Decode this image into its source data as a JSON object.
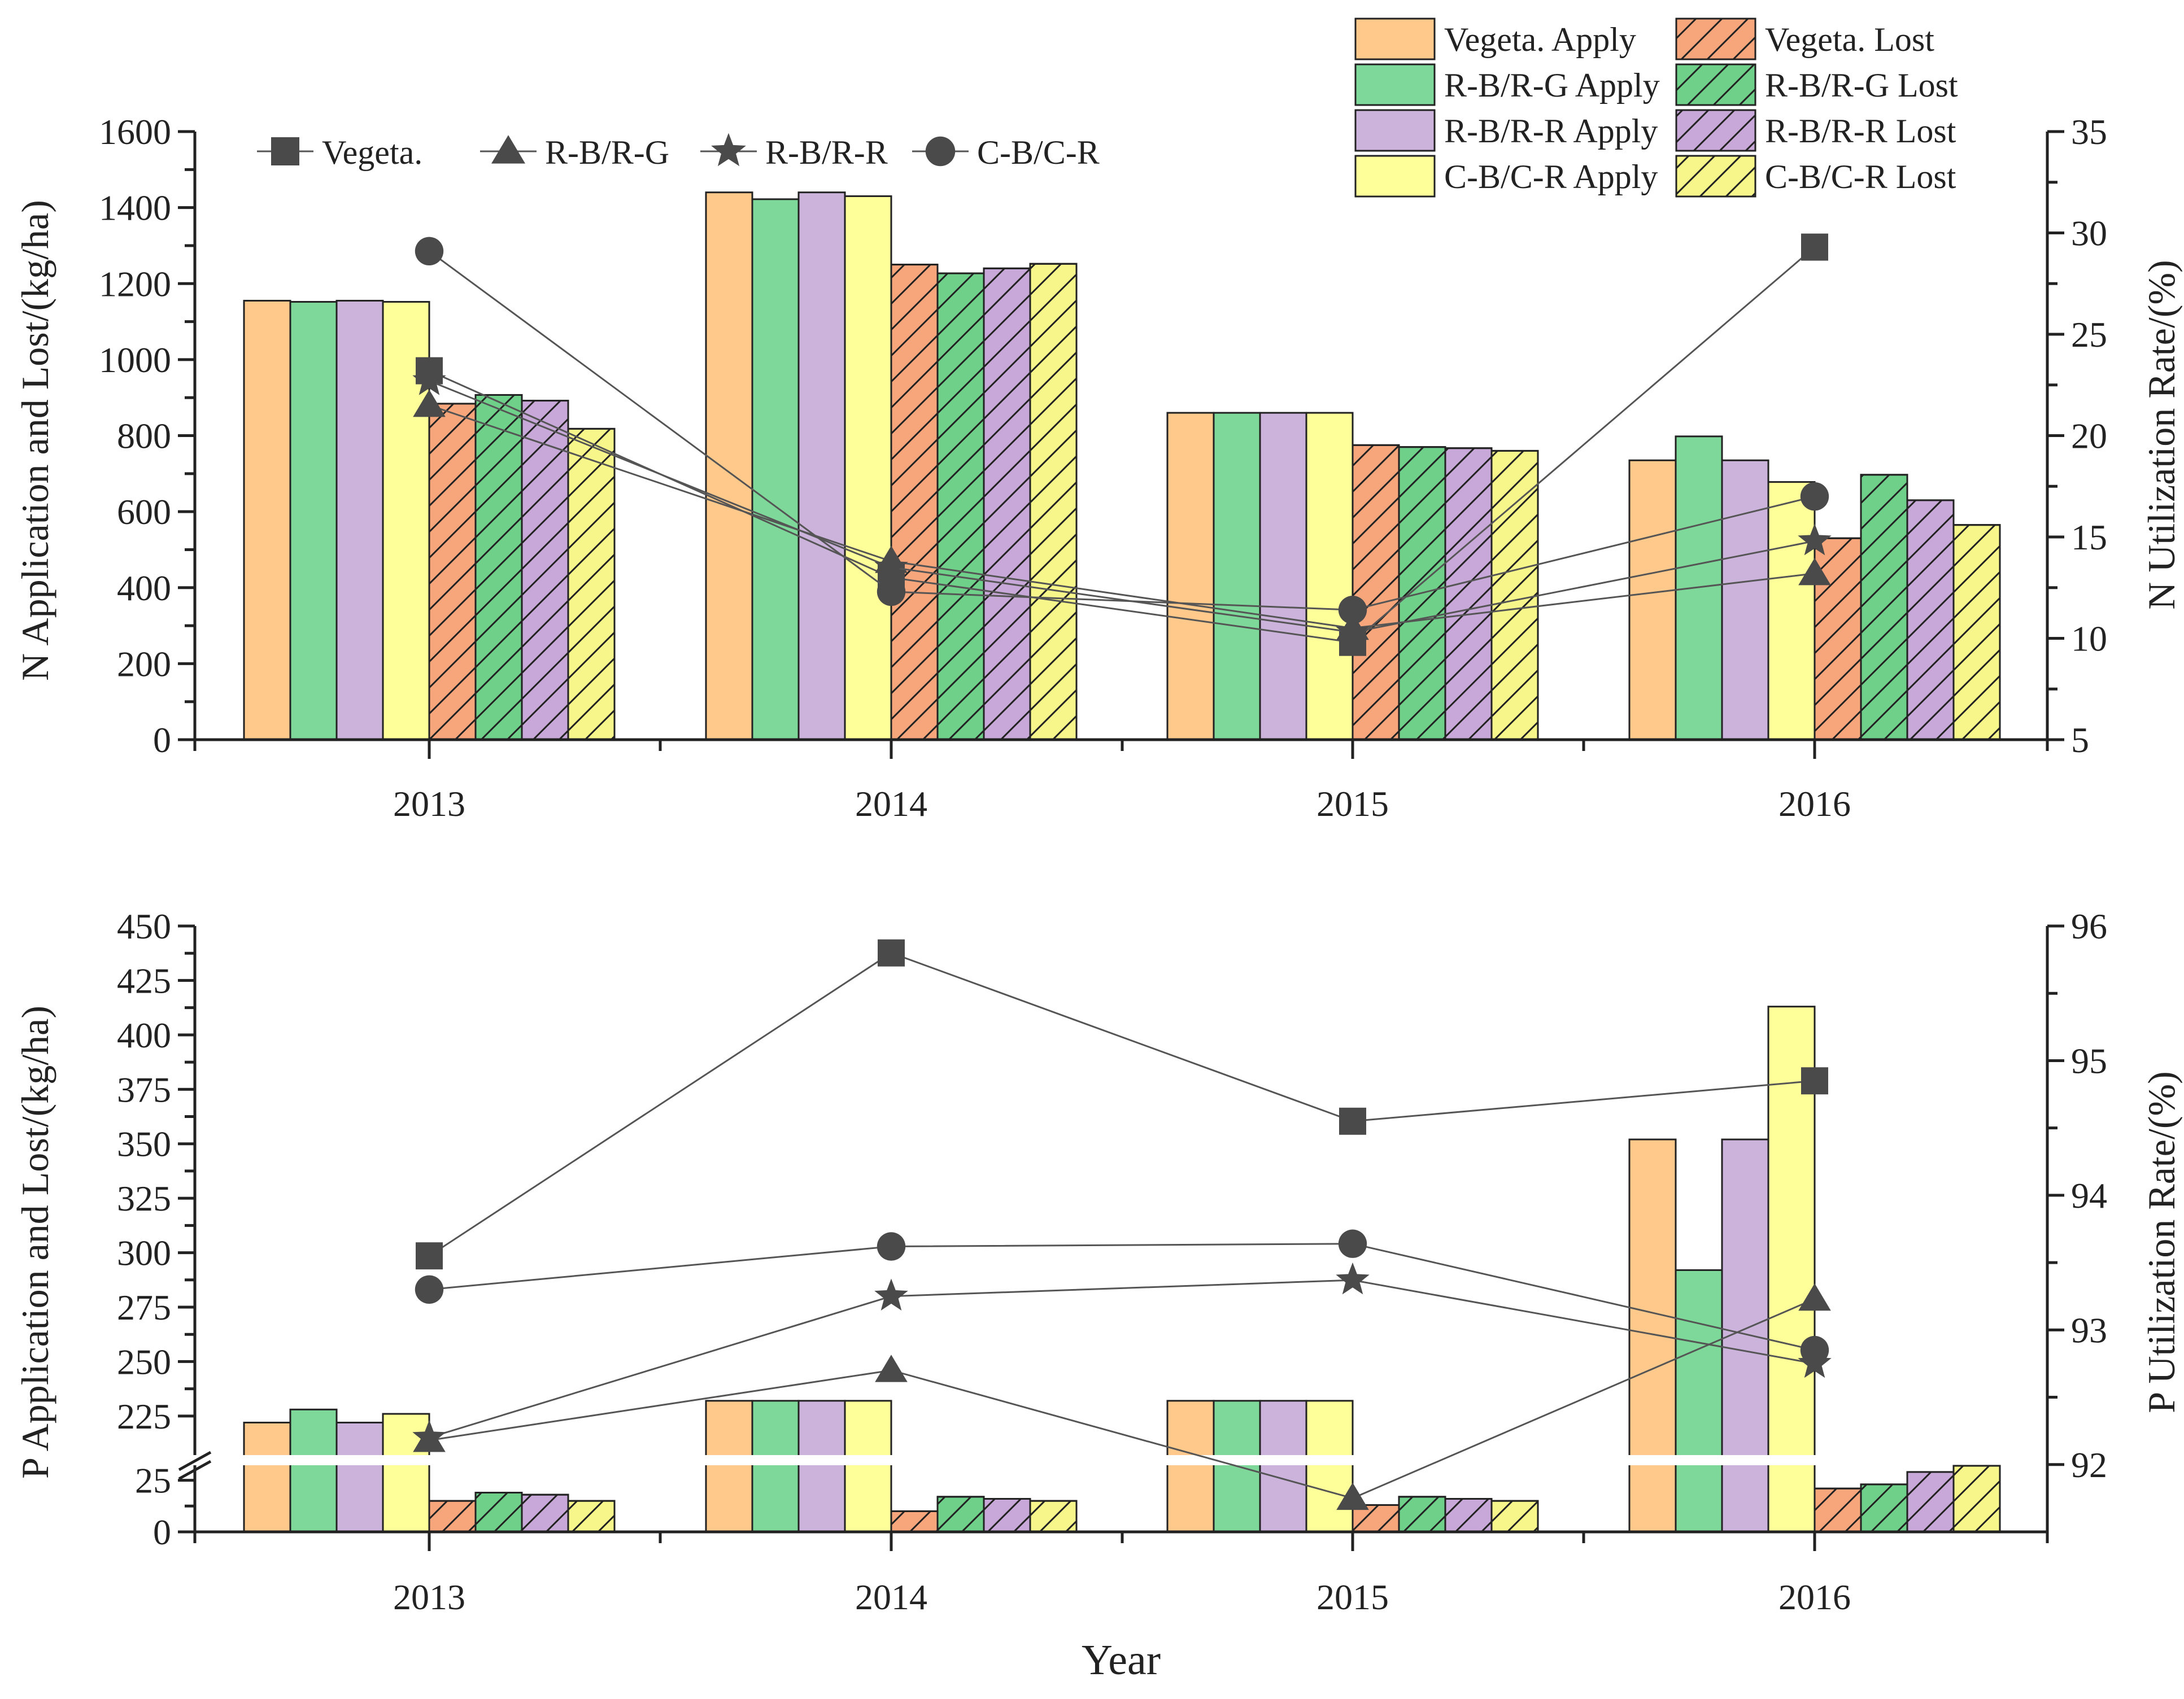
{
  "colors": {
    "vegeta": "#FFC98B",
    "rbrg": "#7DD89A",
    "rbrr": "#CCB3DC",
    "cbcr": "#FFFF99",
    "vegeta_lost": "#F7A67C",
    "rbrg_lost": "#6FD08A",
    "rbrr_lost": "#C8A8D8",
    "cbcr_lost": "#F6F68A",
    "line": "#555555",
    "marker": "#4a4a4a"
  },
  "legend_bars": [
    {
      "label": "Vegeta. Apply",
      "color_key": "vegeta",
      "hatch": false
    },
    {
      "label": "Vegeta. Lost",
      "color_key": "vegeta_lost",
      "hatch": true
    },
    {
      "label": "R-B/R-G Apply",
      "color_key": "rbrg",
      "hatch": false
    },
    {
      "label": "R-B/R-G Lost",
      "color_key": "rbrg_lost",
      "hatch": true
    },
    {
      "label": "R-B/R-R Apply",
      "color_key": "rbrr",
      "hatch": false
    },
    {
      "label": "R-B/R-R Lost",
      "color_key": "rbrr_lost",
      "hatch": true
    },
    {
      "label": "C-B/C-R Apply",
      "color_key": "cbcr",
      "hatch": false
    },
    {
      "label": "C-B/C-R Lost",
      "color_key": "cbcr_lost",
      "hatch": true
    }
  ],
  "legend_lines": [
    {
      "label": "Vegeta.",
      "marker": "square"
    },
    {
      "label": "R-B/R-G",
      "marker": "triangle"
    },
    {
      "label": "R-B/R-R",
      "marker": "star"
    },
    {
      "label": "C-B/C-R",
      "marker": "circle"
    }
  ],
  "chart_data": [
    {
      "type": "bar",
      "id": "nitrogen",
      "categories": [
        "2013",
        "2014",
        "2015",
        "2016"
      ],
      "ylabel": "N Application and Lost/(kg/ha)",
      "y2label": "N Utilization Rate/(%)",
      "ylim": [
        0,
        1600
      ],
      "yticks": [
        0,
        200,
        400,
        600,
        800,
        1000,
        1200,
        1400,
        1600
      ],
      "y2lim": [
        5,
        35
      ],
      "y2ticks": [
        5,
        10,
        15,
        20,
        25,
        30,
        35
      ],
      "apply_series": [
        {
          "name": "Vegeta. Apply",
          "values": [
            1155,
            1440,
            860,
            735
          ]
        },
        {
          "name": "R-B/R-G Apply",
          "values": [
            1152,
            1422,
            860,
            798
          ]
        },
        {
          "name": "R-B/R-R Apply",
          "values": [
            1155,
            1440,
            860,
            735
          ]
        },
        {
          "name": "C-B/C-R Apply",
          "values": [
            1152,
            1430,
            860,
            678
          ]
        }
      ],
      "lost_series": [
        {
          "name": "Vegeta. Lost",
          "values": [
            884,
            1250,
            775,
            530
          ]
        },
        {
          "name": "R-B/R-G Lost",
          "values": [
            907,
            1227,
            770,
            697
          ]
        },
        {
          "name": "R-B/R-R Lost",
          "values": [
            892,
            1240,
            767,
            630
          ]
        },
        {
          "name": "C-B/C-R Lost",
          "values": [
            818,
            1252,
            760,
            565
          ]
        }
      ],
      "rate_series": [
        {
          "name": "Vegeta.",
          "marker": "square",
          "values": [
            23.2,
            13.0,
            9.8,
            29.3
          ]
        },
        {
          "name": "R-B/R-G",
          "marker": "triangle",
          "values": [
            21.5,
            13.8,
            10.5,
            13.2
          ]
        },
        {
          "name": "R-B/R-R",
          "marker": "star",
          "values": [
            22.7,
            13.5,
            10.3,
            14.8
          ]
        },
        {
          "name": "C-B/C-R",
          "marker": "circle",
          "values": [
            29.1,
            12.3,
            11.4,
            17.0
          ]
        }
      ]
    },
    {
      "type": "bar",
      "id": "phosphorus",
      "categories": [
        "2013",
        "2014",
        "2015",
        "2016"
      ],
      "xlabel": "Year",
      "ylabel": "P Application and Lost/(kg/ha)",
      "y2label": "P Utilization Rate/(%)",
      "axis_break": [
        35,
        205
      ],
      "ylim_lower": [
        0,
        35
      ],
      "yticks_lower": [
        0,
        25
      ],
      "ylim_upper": [
        205,
        450
      ],
      "yticks_upper": [
        225,
        250,
        275,
        300,
        325,
        350,
        375,
        400,
        425,
        450
      ],
      "y2lim": [
        91.5,
        96
      ],
      "y2ticks": [
        92,
        93,
        94,
        95,
        96
      ],
      "apply_series": [
        {
          "name": "Vegeta. Apply",
          "values": [
            222,
            232,
            232,
            352
          ]
        },
        {
          "name": "R-B/R-G Apply",
          "values": [
            228,
            232,
            232,
            292
          ]
        },
        {
          "name": "R-B/R-R Apply",
          "values": [
            222,
            232,
            232,
            352
          ]
        },
        {
          "name": "C-B/C-R Apply",
          "values": [
            226,
            232,
            232,
            413
          ]
        }
      ],
      "lost_series": [
        {
          "name": "Vegeta. Lost",
          "values": [
            15,
            10,
            13,
            21
          ]
        },
        {
          "name": "R-B/R-G Lost",
          "values": [
            19,
            17,
            17,
            23
          ]
        },
        {
          "name": "R-B/R-R Lost",
          "values": [
            18,
            16,
            16,
            29
          ]
        },
        {
          "name": "C-B/C-R Lost",
          "values": [
            15,
            15,
            15,
            32
          ]
        }
      ],
      "rate_series": [
        {
          "name": "Vegeta.",
          "marker": "square",
          "values": [
            93.55,
            95.8,
            94.55,
            94.85
          ]
        },
        {
          "name": "R-B/R-G",
          "marker": "triangle",
          "values": [
            92.18,
            92.7,
            91.75,
            93.23
          ]
        },
        {
          "name": "R-B/R-R",
          "marker": "star",
          "values": [
            92.2,
            93.25,
            93.37,
            92.75
          ]
        },
        {
          "name": "C-B/C-R",
          "marker": "circle",
          "values": [
            93.3,
            93.62,
            93.64,
            92.85
          ]
        }
      ]
    }
  ]
}
